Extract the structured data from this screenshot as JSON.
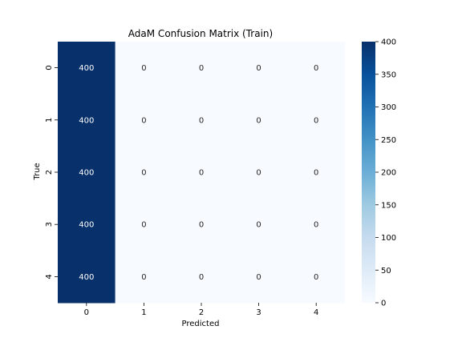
{
  "chart_data": {
    "type": "heatmap",
    "title": "AdaM Confusion Matrix (Train)",
    "xlabel": "Predicted",
    "ylabel": "True",
    "x_categories": [
      "0",
      "1",
      "2",
      "3",
      "4"
    ],
    "y_categories": [
      "0",
      "1",
      "2",
      "3",
      "4"
    ],
    "values": [
      [
        400,
        0,
        0,
        0,
        0
      ],
      [
        400,
        0,
        0,
        0,
        0
      ],
      [
        400,
        0,
        0,
        0,
        0
      ],
      [
        400,
        0,
        0,
        0,
        0
      ],
      [
        400,
        0,
        0,
        0,
        0
      ]
    ],
    "colorbar": {
      "range": [
        0,
        400
      ],
      "ticks": [
        "0",
        "50",
        "100",
        "150",
        "200",
        "250",
        "300",
        "350",
        "400"
      ],
      "colormap": "Blues",
      "low_color": "#f7fbff",
      "high_color": "#08306b"
    }
  }
}
